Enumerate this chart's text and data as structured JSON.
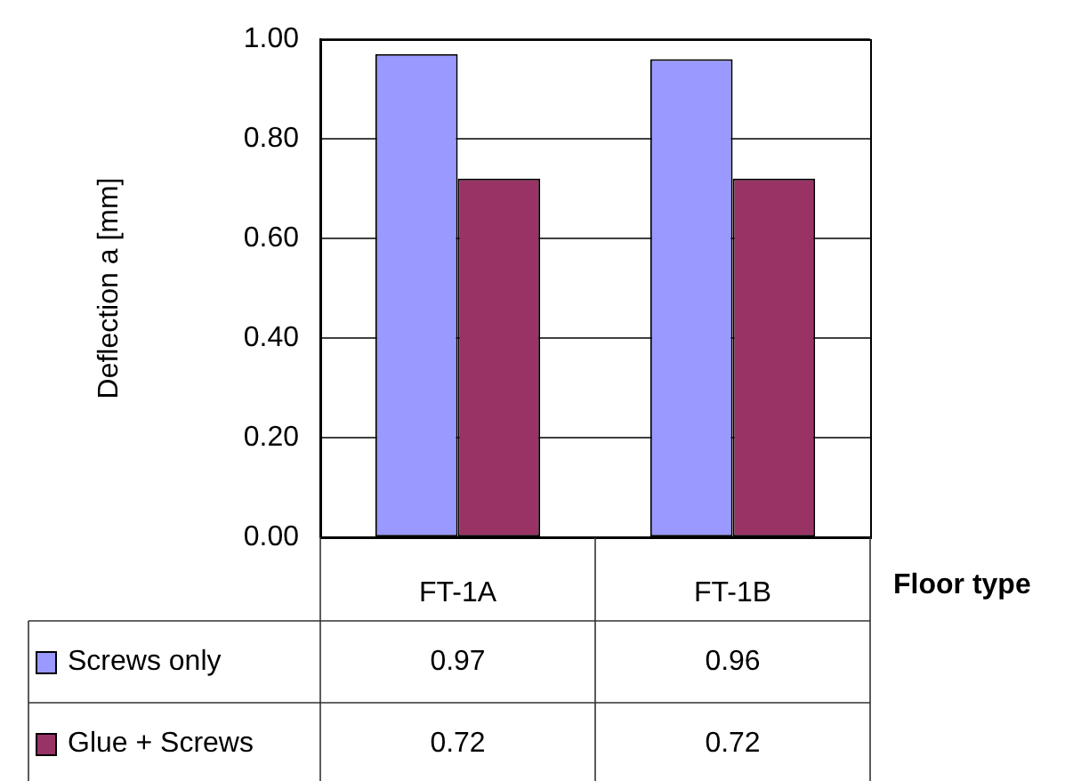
{
  "chart_data": {
    "type": "bar",
    "ylabel": "Deflection a [mm]",
    "xlabel": "Floor type",
    "categories": [
      "FT-1A",
      "FT-1B"
    ],
    "series": [
      {
        "name": "Screws only",
        "color": "#9999ff",
        "values": [
          0.97,
          0.96
        ]
      },
      {
        "name": "Glue + Screws",
        "color": "#993366",
        "values": [
          0.72,
          0.72
        ]
      }
    ],
    "ylim": [
      0,
      1
    ],
    "yticks": [
      {
        "value": 0,
        "label": "0.00"
      },
      {
        "value": 0.2,
        "label": "0.20"
      },
      {
        "value": 0.4,
        "label": "0.40"
      },
      {
        "value": 0.6,
        "label": "0.60"
      },
      {
        "value": 0.8,
        "label": "0.80"
      },
      {
        "value": 1,
        "label": "1.00"
      }
    ],
    "grid": "y",
    "legend": "bottom",
    "data_labels": true
  }
}
